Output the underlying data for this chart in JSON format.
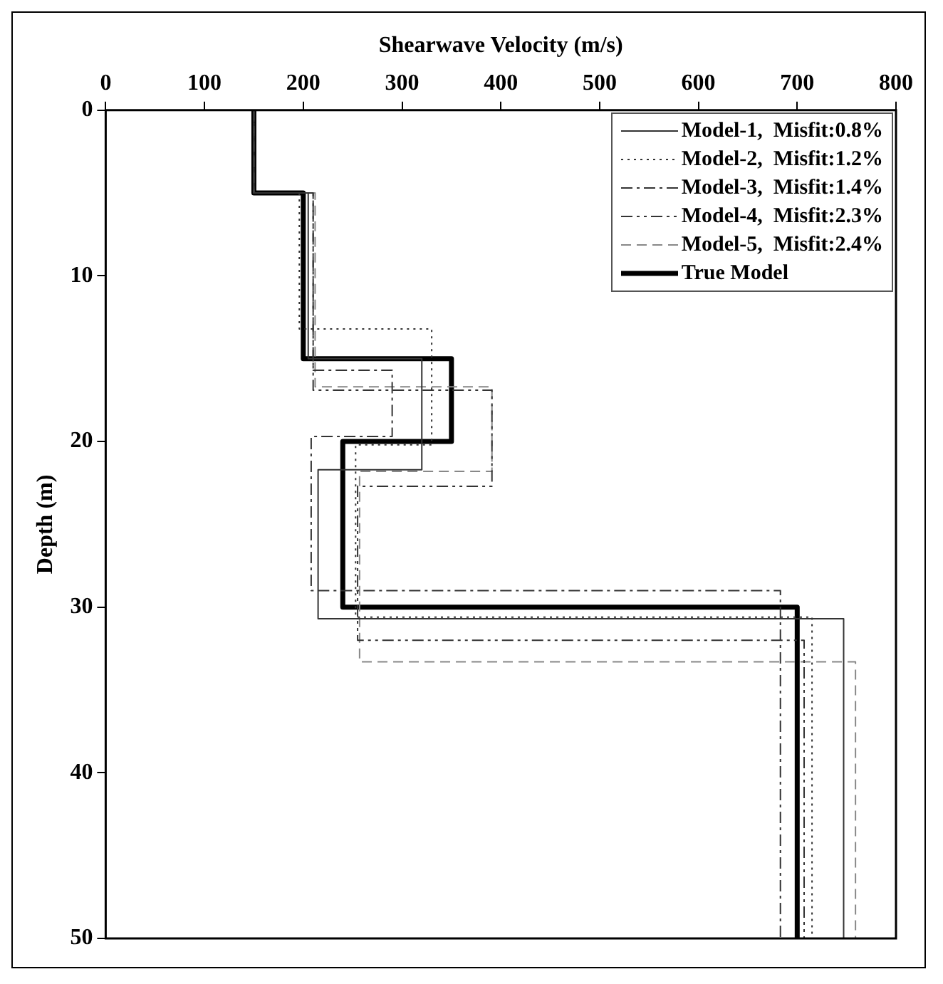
{
  "chart_data": {
    "type": "line",
    "xlabel": "Shearwave Velocity (m/s)",
    "ylabel": "Depth (m)",
    "xlim": [
      0,
      800
    ],
    "xticks": [
      0,
      100,
      200,
      300,
      400,
      500,
      600,
      700,
      800
    ],
    "ylim": [
      50,
      0
    ],
    "yticks": [
      0,
      10,
      20,
      30,
      40,
      50
    ],
    "grid": false,
    "legend": "top right",
    "marker": "none",
    "series": [
      {
        "name": "Model-1,  Misfit:0.8%",
        "color": "#333333",
        "line_style": "solid",
        "x": [
          150,
          150,
          205,
          205,
          320,
          320,
          215,
          215,
          747,
          747
        ],
        "values": [
          0,
          5,
          5,
          15,
          15,
          21.7,
          21.7,
          30.7,
          30.7,
          50
        ]
      },
      {
        "name": "Model-2,  Misfit:1.2%",
        "color": "#333333",
        "line_style": "dotted",
        "x": [
          150,
          150,
          196,
          196,
          330,
          330,
          253,
          253,
          715,
          715
        ],
        "values": [
          0,
          5,
          5,
          13.2,
          13.2,
          20.2,
          20.2,
          30.6,
          30.6,
          50
        ]
      },
      {
        "name": "Model-3,  Misfit:1.4%",
        "color": "#333333",
        "line_style": "dashdot",
        "x": [
          150,
          150,
          210,
          210,
          290,
          290,
          208,
          208,
          683,
          683
        ],
        "values": [
          0,
          5,
          5,
          15.7,
          15.7,
          19.7,
          19.7,
          29,
          29,
          50
        ]
      },
      {
        "name": "Model-4,  Misfit:2.3%",
        "color": "#333333",
        "line_style": "dashdotdot",
        "x": [
          150,
          150,
          210,
          210,
          391,
          391,
          255,
          255,
          707,
          707
        ],
        "values": [
          0,
          5,
          5,
          16.9,
          16.9,
          22.7,
          22.7,
          32,
          32,
          50
        ]
      },
      {
        "name": "Model-5,  Misfit:2.4%",
        "color": "#888888",
        "line_style": "dashed",
        "x": [
          150,
          150,
          212,
          212,
          391,
          391,
          257,
          257,
          759,
          759
        ],
        "values": [
          0,
          5,
          5,
          16.7,
          16.7,
          21.8,
          21.8,
          33.3,
          33.3,
          50
        ]
      },
      {
        "name": "True Model",
        "color": "#000000",
        "line_style": "solid",
        "x": [
          150,
          150,
          200,
          200,
          350,
          350,
          240,
          240,
          700,
          700
        ],
        "values": [
          0,
          5,
          5,
          15,
          15,
          20,
          20,
          30,
          30,
          50
        ]
      }
    ]
  }
}
